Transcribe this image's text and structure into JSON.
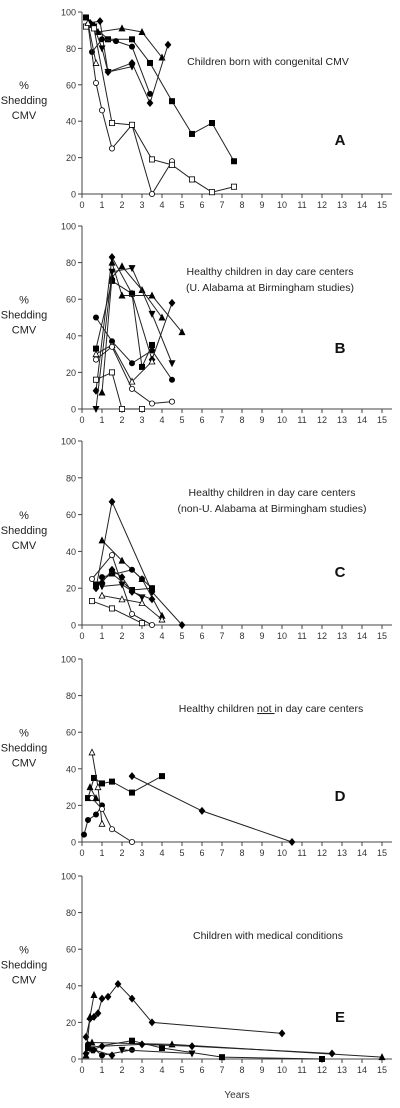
{
  "ylabel_lines": [
    "%",
    "Shedding",
    "CMV"
  ],
  "xlabel": "Years",
  "y_ticks": [
    0,
    20,
    40,
    60,
    80,
    100
  ],
  "x_ticks": [
    0,
    1,
    2,
    3,
    4,
    5,
    6,
    7,
    8,
    9,
    10,
    11,
    12,
    13,
    14,
    15
  ],
  "chart_data": [
    {
      "type": "line",
      "panel": "A",
      "title": "Children born with congenital CMV",
      "title_lines": [
        "Children born with congenital CMV"
      ],
      "xlim": [
        0,
        15.5
      ],
      "ylim": [
        0,
        100
      ],
      "series": [
        {
          "marker": "square-filled",
          "x": [
            0.2,
            0.5,
            1.3,
            2.5,
            3.4,
            4.5,
            5.5,
            6.5,
            7.6
          ],
          "y": [
            97,
            93,
            85,
            85,
            72,
            51,
            33,
            39,
            18
          ]
        },
        {
          "marker": "triangle-filled",
          "x": [
            0.3,
            0.8,
            2.0,
            3.0,
            4.0
          ],
          "y": [
            93,
            89,
            91,
            89,
            75
          ]
        },
        {
          "marker": "diamond-filled",
          "x": [
            0.4,
            0.9,
            1.3,
            2.5,
            3.4,
            4.3
          ],
          "y": [
            94,
            95,
            67,
            72,
            50,
            82
          ]
        },
        {
          "marker": "circle-filled",
          "x": [
            0.5,
            1.0,
            1.7,
            2.5,
            3.4
          ],
          "y": [
            78,
            85,
            84,
            81,
            55
          ]
        },
        {
          "marker": "triangle-down-filled",
          "x": [
            0.6,
            1.0,
            1.3,
            2.5
          ],
          "y": [
            92,
            80,
            67,
            70
          ]
        },
        {
          "marker": "circle-open",
          "x": [
            0.3,
            0.7,
            1.0,
            1.5,
            2.5,
            3.5,
            4.5
          ],
          "y": [
            93,
            61,
            46,
            25,
            38,
            0,
            18
          ]
        },
        {
          "marker": "square-open",
          "x": [
            0.2,
            0.6,
            1.5,
            2.5,
            3.5,
            4.5,
            5.5,
            6.5,
            7.6
          ],
          "y": [
            92,
            91,
            39,
            38,
            19,
            16,
            8,
            1,
            4
          ]
        },
        {
          "marker": "triangle-open",
          "x": [
            0.3,
            0.7
          ],
          "y": [
            94,
            72
          ]
        }
      ]
    },
    {
      "type": "line",
      "panel": "B",
      "title": "Healthy children in day care centers (U. Alabama at Birmingham studies)",
      "title_lines": [
        "Healthy children in day care centers",
        "(U. Alabama at Birmingham studies)"
      ],
      "xlim": [
        0,
        15.5
      ],
      "ylim": [
        0,
        100
      ],
      "series": [
        {
          "marker": "circle-filled",
          "x": [
            0.7,
            1.5,
            2.5,
            3.5,
            4.5
          ],
          "y": [
            50,
            37,
            25,
            32,
            16
          ]
        },
        {
          "marker": "square-filled",
          "x": [
            0.7,
            1.5,
            2.5,
            3.0,
            3.5
          ],
          "y": [
            33,
            70,
            63,
            23,
            35
          ]
        },
        {
          "marker": "triangle-filled",
          "x": [
            1.0,
            1.5,
            2.0,
            3.0,
            4.0
          ],
          "y": [
            9,
            72,
            78,
            65,
            50
          ]
        },
        {
          "marker": "diamond-filled",
          "x": [
            0.7,
            1.5,
            2.5,
            3.5,
            4.5
          ],
          "y": [
            10,
            83,
            63,
            27,
            58
          ]
        },
        {
          "marker": "triangle-filled",
          "x": [
            1.5,
            2.0,
            3.5,
            5.0
          ],
          "y": [
            80,
            62,
            62,
            42
          ]
        },
        {
          "marker": "triangle-down-filled",
          "x": [
            0.7,
            1.5,
            2.5,
            3.5,
            4.5
          ],
          "y": [
            0,
            75,
            77,
            52,
            25
          ]
        },
        {
          "marker": "triangle-open",
          "x": [
            0.7,
            1.5,
            2.5,
            3.5
          ],
          "y": [
            30,
            35,
            15,
            26
          ]
        },
        {
          "marker": "circle-open",
          "x": [
            0.7,
            1.5,
            2.5,
            3.5,
            4.5
          ],
          "y": [
            27,
            34,
            11,
            3,
            4
          ]
        },
        {
          "marker": "square-open",
          "x": [
            0.7,
            1.5,
            2.0,
            3.0
          ],
          "y": [
            16,
            20,
            0,
            0
          ]
        }
      ]
    },
    {
      "type": "line",
      "panel": "C",
      "title": "Healthy children in day care centers (non-U. Alabama at Birmingham studies)",
      "title_lines": [
        "Healthy children in day care centers",
        "(non-U. Alabama at Birmingham studies)"
      ],
      "xlim": [
        0,
        15.5
      ],
      "ylim": [
        0,
        100
      ],
      "series": [
        {
          "marker": "diamond-filled",
          "x": [
            0.7,
            1.5,
            3.5,
            5.0
          ],
          "y": [
            20,
            67,
            18,
            0
          ]
        },
        {
          "marker": "triangle-filled",
          "x": [
            1.0,
            2.0,
            3.0,
            4.0
          ],
          "y": [
            46,
            35,
            25,
            5
          ]
        },
        {
          "marker": "circle-filled",
          "x": [
            1.0,
            2.5,
            3.0,
            3.5
          ],
          "y": [
            26,
            30,
            25,
            20
          ]
        },
        {
          "marker": "circle-open",
          "x": [
            0.5,
            1.5,
            2.5,
            3.5
          ],
          "y": [
            25,
            38,
            6,
            0
          ]
        },
        {
          "marker": "square-filled",
          "x": [
            0.7,
            1.5,
            2.5,
            3.5
          ],
          "y": [
            22,
            28,
            19,
            20
          ]
        },
        {
          "marker": "triangle-down-filled",
          "x": [
            1.0,
            2.0,
            3.0
          ],
          "y": [
            21,
            22,
            15
          ]
        },
        {
          "marker": "diamond-filled",
          "x": [
            1.0,
            1.5,
            2.0,
            2.5,
            3.5
          ],
          "y": [
            23,
            30,
            26,
            18,
            14
          ]
        },
        {
          "marker": "triangle-open",
          "x": [
            1.0,
            2.0,
            3.0,
            4.0
          ],
          "y": [
            16,
            14,
            12,
            3
          ]
        },
        {
          "marker": "square-open",
          "x": [
            0.5,
            1.5,
            3.0
          ],
          "y": [
            13,
            9,
            1
          ]
        }
      ]
    },
    {
      "type": "line",
      "panel": "D",
      "title": "Healthy children not in day care centers",
      "title_lines": [
        "Healthy children not in day care centers"
      ],
      "xlim": [
        0,
        15.5
      ],
      "ylim": [
        0,
        100
      ],
      "series": [
        {
          "marker": "square-filled",
          "x": [
            0.3,
            0.6,
            1.0,
            1.5,
            2.5,
            4.0
          ],
          "y": [
            24,
            35,
            32,
            33,
            27,
            36
          ]
        },
        {
          "marker": "diamond-filled",
          "x": [
            2.5,
            6.0,
            10.5
          ],
          "y": [
            36,
            17,
            0
          ]
        },
        {
          "marker": "circle-filled",
          "x": [
            0.1,
            0.3,
            0.7,
            1.0
          ],
          "y": [
            4,
            12,
            15,
            20
          ]
        },
        {
          "marker": "triangle-open",
          "x": [
            0.5,
            0.8,
            1.0
          ],
          "y": [
            49,
            30,
            10
          ]
        },
        {
          "marker": "circle-open",
          "x": [
            0.5,
            1.0,
            1.5,
            2.5
          ],
          "y": [
            24,
            18,
            7,
            0
          ]
        },
        {
          "marker": "triangle-filled",
          "x": [
            0.4,
            0.7
          ],
          "y": [
            30,
            24
          ]
        }
      ]
    },
    {
      "type": "line",
      "panel": "E",
      "title": "Children with medical conditions",
      "title_lines": [
        "Children with medical conditions"
      ],
      "xlim": [
        0,
        15.5
      ],
      "ylim": [
        0,
        100
      ],
      "series": [
        {
          "marker": "diamond-filled",
          "x": [
            0.2,
            0.4,
            0.6,
            0.8,
            1.0,
            1.3,
            1.8,
            2.5,
            3.5,
            10.0
          ],
          "y": [
            12,
            22,
            23,
            25,
            33,
            34,
            41,
            33,
            20,
            14
          ]
        },
        {
          "marker": "triangle-filled",
          "x": [
            0.2,
            0.4,
            0.6
          ],
          "y": [
            2,
            23,
            35
          ]
        },
        {
          "marker": "triangle-filled",
          "x": [
            0.5,
            4.5,
            15.0
          ],
          "y": [
            9,
            8,
            1
          ]
        },
        {
          "marker": "square-filled",
          "x": [
            0.3,
            2.5,
            4.0,
            7.0,
            12.0
          ],
          "y": [
            6,
            10,
            6,
            1,
            0
          ]
        },
        {
          "marker": "diamond-filled",
          "x": [
            0.5,
            1.0,
            3.0,
            5.5,
            12.5
          ],
          "y": [
            5,
            7,
            8,
            7,
            3
          ]
        },
        {
          "marker": "circle-filled",
          "x": [
            0.3,
            1.0,
            2.5
          ],
          "y": [
            8,
            2,
            5
          ]
        },
        {
          "marker": "diamond-filled",
          "x": [
            0.2,
            0.6,
            1.5
          ],
          "y": [
            3,
            5,
            2
          ]
        },
        {
          "marker": "triangle-down-filled",
          "x": [
            2.0,
            5.5
          ],
          "y": [
            5,
            3
          ]
        }
      ]
    }
  ]
}
